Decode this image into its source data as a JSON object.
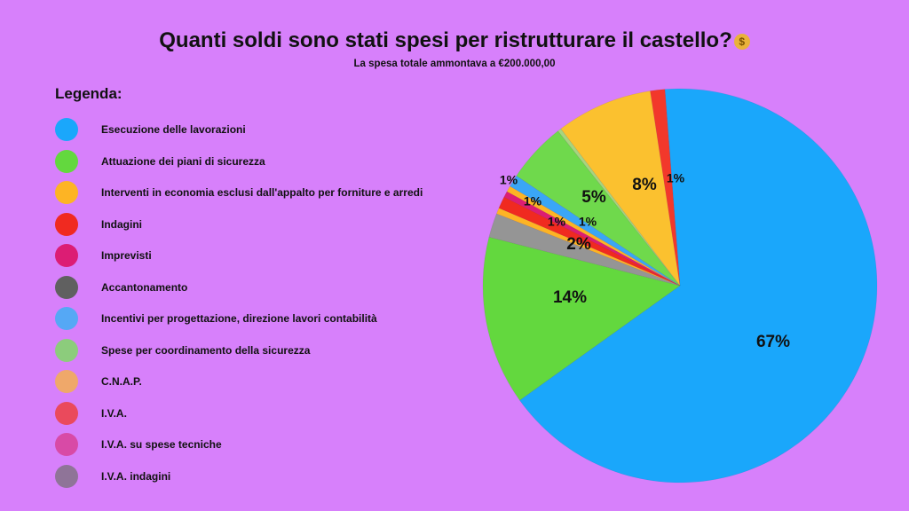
{
  "header": {
    "title": "Quanti soldi sono stati spesi per ristrutturare il castello?",
    "title_icon": "money-bag-icon",
    "subtitle": "La spesa totale ammontava a €200.000,00"
  },
  "legend": {
    "title": "Legenda:",
    "items": [
      {
        "label": "Esecuzione delle lavorazioni",
        "color": "#1aa7fb"
      },
      {
        "label": "Attuazione dei piani di sicurezza",
        "color": "#63d83e"
      },
      {
        "label": "Interventi in economia esclusi dall'appalto per forniture e arredi",
        "color": "#fdb424"
      },
      {
        "label": "Indagini",
        "color": "#f02a20"
      },
      {
        "label": "Imprevisti",
        "color": "#dc1d74"
      },
      {
        "label": "Accantonamento",
        "color": "#606060"
      },
      {
        "label": "Incentivi per progettazione, direzione lavori contabilità",
        "color": "#55a8f5"
      },
      {
        "label": "Spese per coordinamento della sicurezza",
        "color": "#8ccc7c"
      },
      {
        "label": "C.N.A.P.",
        "color": "#efa86a"
      },
      {
        "label": "I.V.A.",
        "color": "#ea4a5c"
      },
      {
        "label": "I.V.A. su spese tecniche",
        "color": "#d84aa6"
      },
      {
        "label": "I.V.A. indagini",
        "color": "#8f7498"
      }
    ]
  },
  "chart_data": {
    "type": "pie",
    "title": "Quanti soldi sono stati spesi per ristrutturare il castello?",
    "subtitle": "La spesa totale ammontava a €200.000,00",
    "legend_position": "left",
    "slices": [
      {
        "label": "Esecuzione delle lavorazioni",
        "value": 67,
        "display": "67%",
        "color": "#1aa7fb"
      },
      {
        "label": "Attuazione dei piani di sicurezza",
        "value": 14,
        "display": "14%",
        "color": "#63d83e"
      },
      {
        "label": "I.V.A. indagini",
        "value": 2,
        "display": "2%",
        "color": "#959595"
      },
      {
        "label": "Interventi in economia esclusi dall'appalto per forniture e arredi",
        "value": 0.5,
        "display": "",
        "color": "#fdb424"
      },
      {
        "label": "Indagini",
        "value": 1,
        "display": "1%",
        "color": "#f02a20"
      },
      {
        "label": "Imprevisti",
        "value": 0.5,
        "display": "1%",
        "color": "#dc1d74"
      },
      {
        "label": "Accantonamento",
        "value": 0.5,
        "display": "1%",
        "color": "#fdb424"
      },
      {
        "label": "Incentivi per progettazione, direzione lavori contabilità",
        "value": 1,
        "display": "1%",
        "color": "#3aa6f6"
      },
      {
        "label": "Spese per coordinamento della sicurezza",
        "value": 5,
        "display": "5%",
        "color": "#6fd94c"
      },
      {
        "label": "C.N.A.P.",
        "value": 0.3,
        "display": "",
        "color": "#a6d57f"
      },
      {
        "label": "I.V.A.",
        "value": 8,
        "display": "8%",
        "color": "#fbc12f"
      },
      {
        "label": "I.V.A. su spese tecniche",
        "value": 1.2,
        "display": "1%",
        "color": "#f2382b"
      }
    ]
  }
}
